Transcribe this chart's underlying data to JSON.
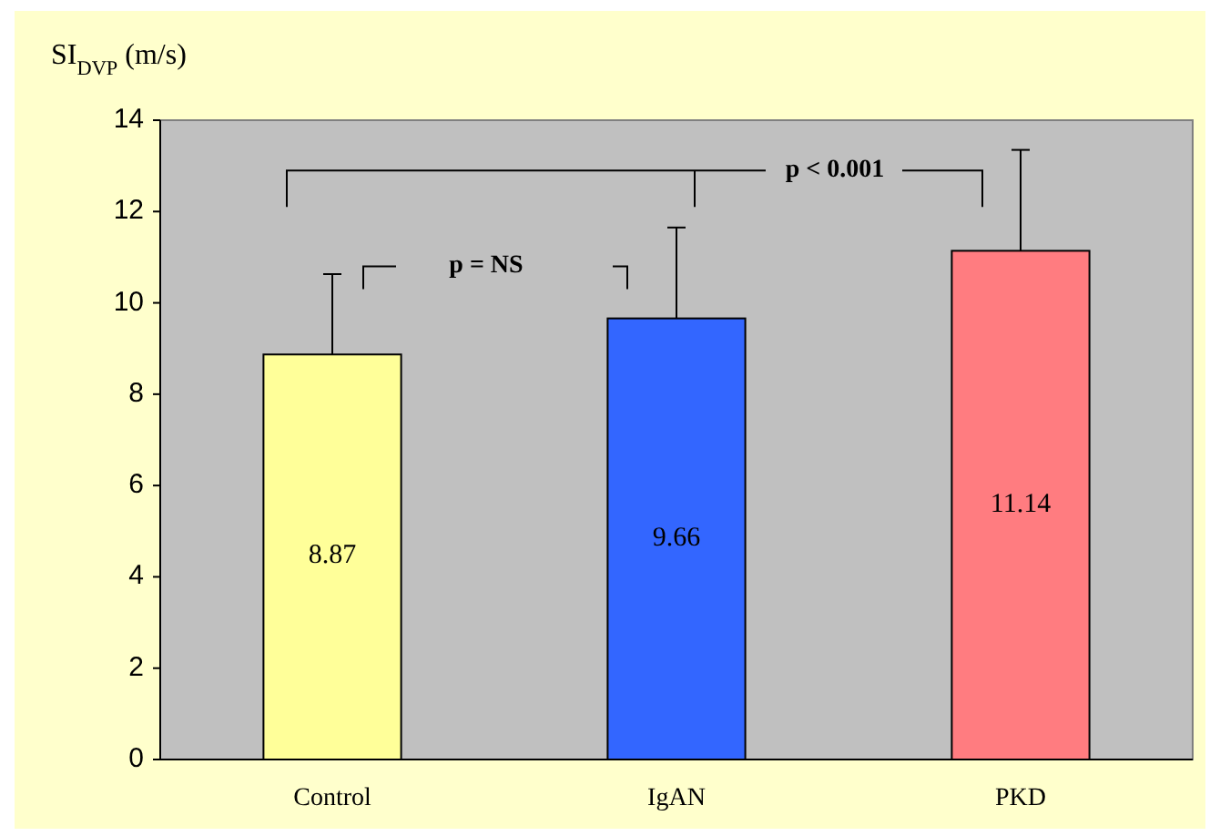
{
  "chart_data": {
    "type": "bar",
    "ylabel": "SI$_{DVP}$ (m/s)",
    "categories": [
      "Control",
      "IgAN",
      "PKD"
    ],
    "values": [
      8.87,
      9.66,
      11.14
    ],
    "colors": [
      "#ffff99",
      "#3366ff",
      "#ff7c80"
    ],
    "errors": [
      [
        8.87,
        10.63
      ],
      [
        9.66,
        11.65
      ],
      [
        11.14,
        13.35
      ]
    ],
    "ylim": [
      0,
      14
    ],
    "yticks": [
      0,
      2,
      4,
      6,
      8,
      10,
      12,
      14
    ],
    "grid": false,
    "data_labels": true,
    "annotations": [
      "p = NS",
      "p < 0.001"
    ]
  }
}
